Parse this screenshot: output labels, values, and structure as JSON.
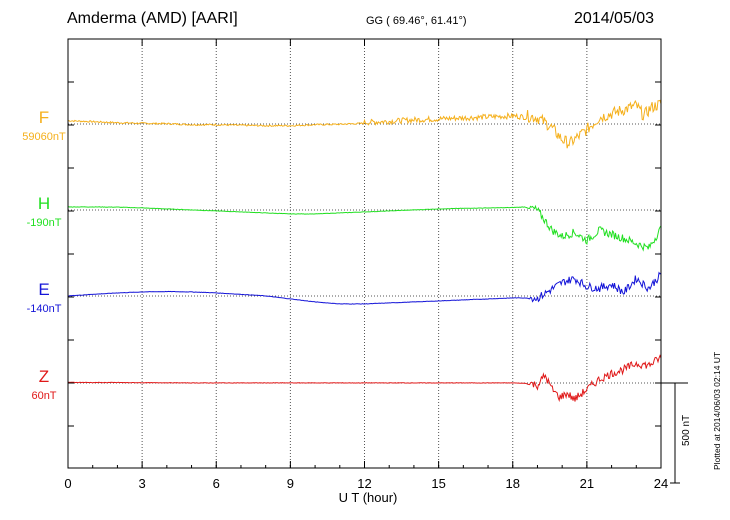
{
  "header": {
    "station": "Amderma (AMD)  [AARI]",
    "coords": "GG ( 69.46°,  61.41°)",
    "date": "2014/05/03"
  },
  "footer": {
    "plotted_at": "Plotted at 2014/06/03 02:14 UT",
    "scale_label": "500 nT"
  },
  "colors": {
    "F": "#f5b01c",
    "H": "#22e022",
    "E": "#1414d8",
    "Z": "#e01818",
    "axis": "#000000",
    "grid": "#555555"
  },
  "chart_data": {
    "type": "line",
    "title": "Amderma (AMD)  [AARI]",
    "xlabel": "U T (hour)",
    "ylabel": "",
    "xlim": [
      0,
      24
    ],
    "x_ticks": [
      "0",
      "3",
      "6",
      "9",
      "12",
      "15",
      "18",
      "21",
      "24"
    ],
    "scale_bar_nT": 500,
    "series": [
      {
        "name": "F",
        "baseline_label": "59060nT",
        "x": [
          0,
          1,
          2,
          3,
          4,
          5,
          6,
          7,
          8,
          9,
          10,
          11,
          12,
          13,
          14,
          15,
          16,
          17,
          18,
          18.5,
          19,
          19.5,
          20,
          20.3,
          20.6,
          21,
          21.5,
          22,
          22.5,
          23,
          23.3,
          23.6,
          24
        ],
        "values": [
          15,
          10,
          5,
          2,
          0,
          -5,
          -5,
          -8,
          -10,
          -10,
          -5,
          -3,
          2,
          8,
          15,
          20,
          25,
          30,
          35,
          30,
          20,
          -20,
          -90,
          -110,
          -80,
          -40,
          20,
          40,
          60,
          80,
          30,
          70,
          90
        ]
      },
      {
        "name": "H",
        "baseline_label": "-190nT",
        "x": [
          0,
          1,
          2,
          3,
          4,
          5,
          6,
          7,
          8,
          9,
          10,
          11,
          12,
          13,
          14,
          15,
          16,
          17,
          18,
          18.5,
          19,
          19.3,
          19.6,
          20,
          20.5,
          21,
          21.5,
          22,
          22.5,
          23,
          23.5,
          24
        ],
        "values": [
          15,
          15,
          14,
          10,
          5,
          0,
          -5,
          -10,
          -15,
          -20,
          -20,
          -15,
          -10,
          -5,
          0,
          5,
          8,
          10,
          12,
          15,
          -10,
          -60,
          -110,
          -140,
          -120,
          -160,
          -110,
          -130,
          -150,
          -175,
          -200,
          -100
        ]
      },
      {
        "name": "E",
        "baseline_label": "-140nT",
        "x": [
          0,
          1,
          2,
          3,
          4,
          5,
          6,
          7,
          8,
          9,
          10,
          11,
          12,
          13,
          14,
          15,
          16,
          17,
          18,
          18.5,
          19,
          19.5,
          20,
          20.5,
          21,
          21.5,
          22,
          22.5,
          23,
          23.5,
          24
        ],
        "values": [
          0,
          8,
          15,
          20,
          22,
          20,
          15,
          8,
          0,
          -15,
          -30,
          -40,
          -40,
          -35,
          -30,
          -25,
          -20,
          -15,
          -10,
          -10,
          -20,
          20,
          60,
          80,
          40,
          30,
          50,
          10,
          80,
          30,
          100
        ]
      },
      {
        "name": "Z",
        "baseline_label": "60nT",
        "x": [
          0,
          1,
          2,
          3,
          4,
          5,
          6,
          7,
          8,
          9,
          10,
          11,
          12,
          13,
          14,
          15,
          16,
          17,
          18,
          18.5,
          19,
          19.3,
          19.6,
          19.9,
          20.2,
          20.5,
          21,
          21.5,
          22,
          22.5,
          23,
          23.5,
          24
        ],
        "values": [
          3,
          2,
          2,
          1,
          1,
          0,
          0,
          0,
          0,
          0,
          0,
          0,
          0,
          0,
          0,
          0,
          0,
          0,
          0,
          -2,
          -20,
          30,
          -40,
          -80,
          -60,
          -90,
          -40,
          10,
          40,
          60,
          90,
          80,
          120
        ]
      }
    ]
  }
}
